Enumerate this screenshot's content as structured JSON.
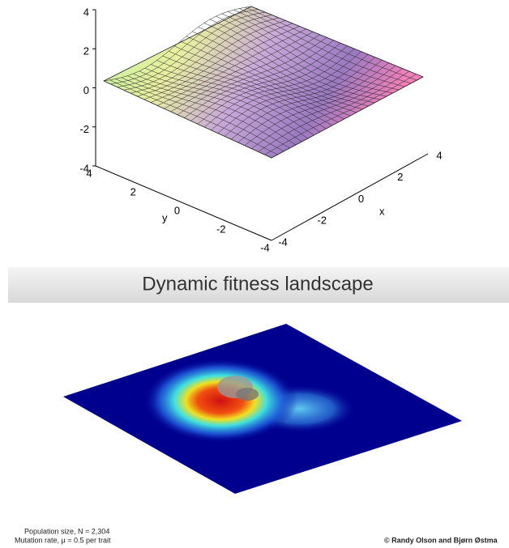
{
  "surface_plot": {
    "z_ticks": [
      4,
      2,
      0,
      -2,
      -4
    ],
    "y_ticks": [
      4,
      2,
      0,
      -2,
      -4
    ],
    "x_ticks": [
      -4,
      -2,
      0,
      2,
      4
    ],
    "x_label": "x",
    "y_label": "y"
  },
  "simulation": {
    "title": "Dynamic fitness landscape",
    "population": "Population size, N = 2,304",
    "mutation": "Mutation rate, μ = 0.5 per trait",
    "credit": "© Randy Olson and Bjørn Østma"
  }
}
